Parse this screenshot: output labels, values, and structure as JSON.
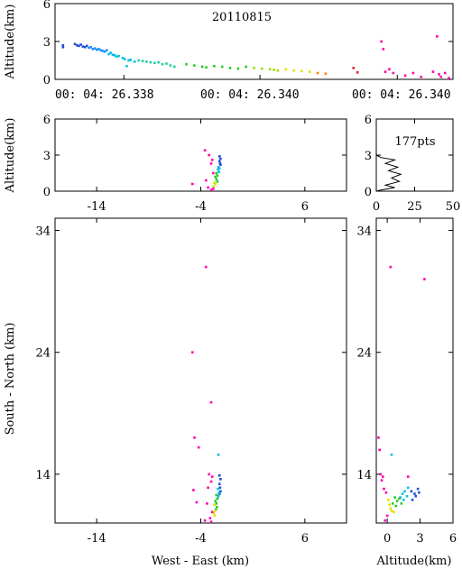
{
  "chart_data": [
    {
      "id": "time_height",
      "type": "scatter",
      "title": "20110815",
      "xlabel": "",
      "ylabel": "Altitude(km)",
      "x_tick_labels": [
        "00: 04: 26.338",
        "00: 04: 26.340",
        "00: 04: 26.340"
      ],
      "ylim": [
        0,
        6
      ],
      "yticks": [
        0,
        3,
        6
      ],
      "grid": false,
      "points_note": "x is fraction of displayed time span",
      "series": [
        {
          "color": "#1f4fd8",
          "points": [
            [
              0.02,
              2.7
            ],
            [
              0.02,
              2.55
            ],
            [
              0.05,
              2.8
            ],
            [
              0.055,
              2.7
            ],
            [
              0.06,
              2.65
            ],
            [
              0.065,
              2.75
            ],
            [
              0.07,
              2.6
            ],
            [
              0.075,
              2.55
            ],
            [
              0.08,
              2.65
            ]
          ]
        },
        {
          "color": "#1e90ff",
          "points": [
            [
              0.085,
              2.5
            ],
            [
              0.09,
              2.55
            ],
            [
              0.095,
              2.4
            ],
            [
              0.1,
              2.45
            ],
            [
              0.105,
              2.35
            ],
            [
              0.11,
              2.4
            ],
            [
              0.115,
              2.3
            ],
            [
              0.12,
              2.25
            ],
            [
              0.125,
              2.2
            ],
            [
              0.13,
              2.3
            ]
          ]
        },
        {
          "color": "#00bfe0",
          "points": [
            [
              0.135,
              2.0
            ],
            [
              0.14,
              2.1
            ],
            [
              0.145,
              1.95
            ],
            [
              0.15,
              1.9
            ],
            [
              0.155,
              1.8
            ],
            [
              0.16,
              1.85
            ],
            [
              0.17,
              1.7
            ],
            [
              0.175,
              1.6
            ],
            [
              0.18,
              1.05
            ],
            [
              0.185,
              1.5
            ],
            [
              0.19,
              1.55
            ],
            [
              0.2,
              1.4
            ]
          ]
        },
        {
          "color": "#1ed0a0",
          "points": [
            [
              0.21,
              1.5
            ],
            [
              0.22,
              1.45
            ],
            [
              0.23,
              1.4
            ],
            [
              0.24,
              1.35
            ],
            [
              0.25,
              1.3
            ],
            [
              0.26,
              1.35
            ],
            [
              0.27,
              1.2
            ],
            [
              0.28,
              1.25
            ],
            [
              0.29,
              1.1
            ],
            [
              0.3,
              1.0
            ]
          ]
        },
        {
          "color": "#22cc22",
          "points": [
            [
              0.33,
              1.2
            ],
            [
              0.35,
              1.1
            ],
            [
              0.37,
              1.0
            ],
            [
              0.38,
              0.95
            ],
            [
              0.4,
              1.05
            ],
            [
              0.42,
              1.0
            ],
            [
              0.44,
              0.9
            ],
            [
              0.46,
              0.85
            ],
            [
              0.48,
              1.0
            ]
          ]
        },
        {
          "color": "#a0dd00",
          "points": [
            [
              0.5,
              0.9
            ],
            [
              0.52,
              0.85
            ],
            [
              0.54,
              0.8
            ],
            [
              0.55,
              0.75
            ],
            [
              0.56,
              0.7
            ]
          ]
        },
        {
          "color": "#e0e000",
          "points": [
            [
              0.58,
              0.8
            ],
            [
              0.6,
              0.7
            ],
            [
              0.62,
              0.65
            ],
            [
              0.64,
              0.6
            ]
          ]
        },
        {
          "color": "#ff8800",
          "points": [
            [
              0.66,
              0.5
            ],
            [
              0.68,
              0.45
            ]
          ]
        },
        {
          "color": "#dd2222",
          "points": [
            [
              0.75,
              0.9
            ],
            [
              0.76,
              0.55
            ]
          ]
        },
        {
          "color": "#ff00aa",
          "points": [
            [
              0.82,
              3.0
            ],
            [
              0.825,
              2.4
            ],
            [
              0.83,
              0.6
            ],
            [
              0.84,
              0.8
            ],
            [
              0.85,
              0.5
            ],
            [
              0.88,
              0.3
            ],
            [
              0.9,
              0.5
            ],
            [
              0.92,
              0.2
            ],
            [
              0.95,
              0.6
            ],
            [
              0.96,
              3.4
            ],
            [
              0.965,
              0.4
            ],
            [
              0.97,
              0.2
            ],
            [
              0.98,
              0.5
            ],
            [
              0.99,
              0.1
            ]
          ]
        }
      ]
    },
    {
      "id": "we_height",
      "type": "scatter",
      "xlabel": "",
      "ylabel": "Altitude(km)",
      "xlim": [
        -18,
        10
      ],
      "xticks": [
        -14,
        -4,
        6
      ],
      "ylim": [
        0,
        6
      ],
      "yticks": [
        0,
        3,
        6
      ],
      "grid": false,
      "series": [
        {
          "color": "#1f4fd8",
          "points": [
            [
              -2.2,
              2.9
            ],
            [
              -2.1,
              2.7
            ],
            [
              -2.2,
              2.5
            ],
            [
              -2.15,
              2.3
            ],
            [
              -2.1,
              2.2
            ]
          ]
        },
        {
          "color": "#00bfe0",
          "points": [
            [
              -2.3,
              2.0
            ],
            [
              -2.2,
              1.9
            ],
            [
              -2.35,
              1.8
            ],
            [
              -2.25,
              1.6
            ]
          ]
        },
        {
          "color": "#22cc22",
          "points": [
            [
              -2.5,
              1.5
            ],
            [
              -2.4,
              1.3
            ],
            [
              -2.6,
              1.2
            ],
            [
              -2.5,
              1.0
            ],
            [
              -2.4,
              0.8
            ]
          ]
        },
        {
          "color": "#e0e000",
          "points": [
            [
              -2.7,
              0.7
            ],
            [
              -2.6,
              0.6
            ],
            [
              -2.75,
              0.4
            ]
          ]
        },
        {
          "color": "#ff00aa",
          "points": [
            [
              -3.6,
              3.4
            ],
            [
              -3.2,
              3.0
            ],
            [
              -2.9,
              2.6
            ],
            [
              -3.0,
              2.3
            ],
            [
              -2.8,
              1.5
            ],
            [
              -4.8,
              0.6
            ],
            [
              -3.3,
              0.3
            ],
            [
              -3.0,
              0.1
            ],
            [
              -2.8,
              0.2
            ],
            [
              -3.5,
              0.9
            ]
          ]
        }
      ]
    },
    {
      "id": "altitude_histogram",
      "type": "line",
      "title": "177pts",
      "xlim": [
        0,
        50
      ],
      "xticks": [
        0,
        25,
        50
      ],
      "ylim": [
        0,
        6
      ],
      "yticks": [
        0,
        3,
        6
      ],
      "grid": false,
      "profile": [
        [
          0,
          3.0
        ],
        [
          3,
          2.8
        ],
        [
          12,
          2.6
        ],
        [
          6,
          2.3
        ],
        [
          14,
          2.0
        ],
        [
          8,
          1.7
        ],
        [
          16,
          1.4
        ],
        [
          10,
          1.1
        ],
        [
          15,
          0.8
        ],
        [
          6,
          0.5
        ],
        [
          12,
          0.3
        ],
        [
          3,
          0.1
        ],
        [
          0,
          0.0
        ]
      ]
    },
    {
      "id": "plan_view",
      "type": "scatter",
      "xlabel": "West - East (km)",
      "ylabel": "South - North (km)",
      "xlim": [
        -18,
        10
      ],
      "xticks": [
        -14,
        -4,
        6
      ],
      "ylim": [
        10,
        35
      ],
      "yticks": [
        14,
        24,
        34
      ],
      "grid": false,
      "series": [
        {
          "color": "#1f4fd8",
          "points": [
            [
              -2.2,
              13.9
            ],
            [
              -2.1,
              13.6
            ],
            [
              -2.2,
              13.2
            ],
            [
              -2.15,
              12.9
            ],
            [
              -2.1,
              12.6
            ],
            [
              -2.2,
              12.4
            ]
          ]
        },
        {
          "color": "#00bfe0",
          "points": [
            [
              -2.3,
              15.6
            ],
            [
              -2.35,
              12.8
            ],
            [
              -2.25,
              12.5
            ],
            [
              -2.3,
              12.2
            ],
            [
              -2.4,
              12.0
            ]
          ]
        },
        {
          "color": "#22cc22",
          "points": [
            [
              -2.5,
              12.3
            ],
            [
              -2.4,
              12.0
            ],
            [
              -2.6,
              11.8
            ],
            [
              -2.5,
              11.6
            ],
            [
              -2.45,
              11.3
            ],
            [
              -2.55,
              11.1
            ]
          ]
        },
        {
          "color": "#e0e000",
          "points": [
            [
              -2.7,
              11.5
            ],
            [
              -2.6,
              11.0
            ],
            [
              -2.75,
              10.8
            ],
            [
              -2.65,
              10.6
            ]
          ]
        },
        {
          "color": "#ff00aa",
          "points": [
            [
              -3.5,
              31.0
            ],
            [
              -4.8,
              24.0
            ],
            [
              -3.0,
              19.9
            ],
            [
              -4.6,
              17.0
            ],
            [
              -4.2,
              16.2
            ],
            [
              -3.2,
              14.0
            ],
            [
              -2.9,
              13.8
            ],
            [
              -3.0,
              13.4
            ],
            [
              -3.3,
              12.9
            ],
            [
              -4.7,
              12.7
            ],
            [
              -4.4,
              11.7
            ],
            [
              -3.4,
              11.6
            ],
            [
              -2.9,
              10.9
            ],
            [
              -3.1,
              10.4
            ],
            [
              -3.6,
              10.2
            ],
            [
              -3.0,
              10.1
            ]
          ]
        }
      ]
    },
    {
      "id": "altitude_north",
      "type": "scatter",
      "xlabel": "Altitude(km)",
      "ylabel": "",
      "xlim": [
        -1,
        6
      ],
      "xticks": [
        0,
        3,
        6
      ],
      "ylim": [
        10,
        35
      ],
      "yticks": [
        14,
        24,
        34
      ],
      "grid": false,
      "series": [
        {
          "color": "#1f4fd8",
          "points": [
            [
              2.8,
              12.8
            ],
            [
              2.5,
              12.4
            ],
            [
              2.2,
              12.6
            ],
            [
              2.6,
              12.2
            ],
            [
              2.3,
              11.9
            ],
            [
              2.9,
              12.5
            ]
          ]
        },
        {
          "color": "#00bfe0",
          "points": [
            [
              1.9,
              12.9
            ],
            [
              1.6,
              12.6
            ],
            [
              1.8,
              12.2
            ],
            [
              1.4,
              12.4
            ],
            [
              0.4,
              15.6
            ],
            [
              1.2,
              12.1
            ],
            [
              1.5,
              11.9
            ]
          ]
        },
        {
          "color": "#22cc22",
          "points": [
            [
              1.1,
              12.0
            ],
            [
              0.9,
              11.8
            ],
            [
              0.7,
              12.1
            ],
            [
              1.3,
              11.6
            ],
            [
              0.5,
              11.6
            ],
            [
              0.8,
              11.4
            ]
          ]
        },
        {
          "color": "#e0e000",
          "points": [
            [
              0.2,
              11.5
            ],
            [
              0.1,
              11.9
            ],
            [
              0.3,
              11.2
            ],
            [
              0.4,
              11.0
            ],
            [
              0.6,
              10.9
            ]
          ]
        },
        {
          "color": "#ff00aa",
          "points": [
            [
              0.3,
              31.0
            ],
            [
              3.4,
              30.0
            ],
            [
              -0.8,
              17.0
            ],
            [
              -0.7,
              16.0
            ],
            [
              -0.6,
              14.0
            ],
            [
              -0.4,
              13.8
            ],
            [
              -0.5,
              13.5
            ],
            [
              -0.3,
              12.8
            ],
            [
              1.9,
              13.8
            ],
            [
              -0.1,
              12.5
            ],
            [
              0.0,
              10.6
            ],
            [
              -0.2,
              10.2
            ]
          ]
        }
      ]
    }
  ]
}
